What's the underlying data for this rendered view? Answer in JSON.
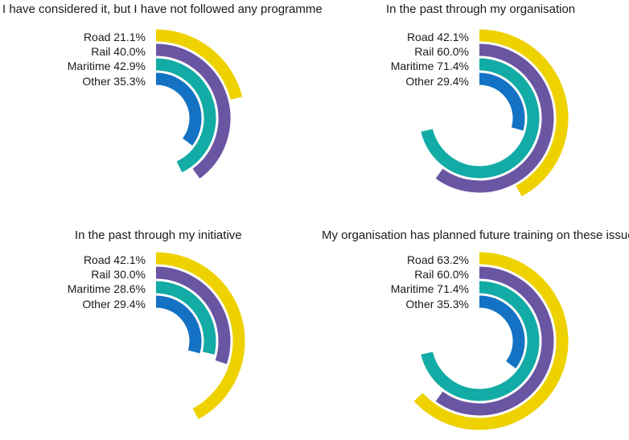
{
  "chart_data": [
    {
      "type": "radial-bar",
      "title": "I have considered it, but I have not followed any programme",
      "series": [
        {
          "name": "Road",
          "value": 21.1
        },
        {
          "name": "Rail",
          "value": 40.0
        },
        {
          "name": "Maritime",
          "value": 42.9
        },
        {
          "name": "Other",
          "value": 35.3
        }
      ]
    },
    {
      "type": "radial-bar",
      "title": "In the past through my organisation",
      "series": [
        {
          "name": "Road",
          "value": 42.1
        },
        {
          "name": "Rail",
          "value": 60.0
        },
        {
          "name": "Maritime",
          "value": 71.4
        },
        {
          "name": "Other",
          "value": 29.4
        }
      ]
    },
    {
      "type": "radial-bar",
      "title": "In the past through my initiative",
      "series": [
        {
          "name": "Road",
          "value": 42.1
        },
        {
          "name": "Rail",
          "value": 30.0
        },
        {
          "name": "Maritime",
          "value": 28.6
        },
        {
          "name": "Other",
          "value": 29.4
        }
      ]
    },
    {
      "type": "radial-bar",
      "title": "My organisation has planned future training on these issues",
      "series": [
        {
          "name": "Road",
          "value": 63.2
        },
        {
          "name": "Rail",
          "value": 60.0
        },
        {
          "name": "Maritime",
          "value": 71.4
        },
        {
          "name": "Other",
          "value": 35.3
        }
      ]
    }
  ],
  "colors": {
    "Road": "#eed200",
    "Rail": "#6a55a3",
    "Maritime": "#12aba5",
    "Other": "#1372c3"
  }
}
